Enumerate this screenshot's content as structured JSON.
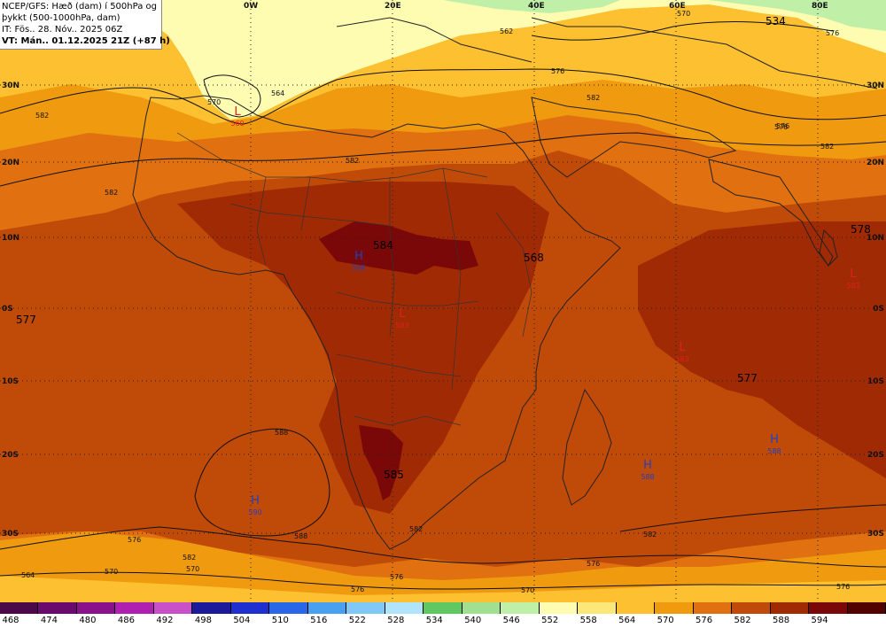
{
  "header": {
    "line1": "NCEP/GFS: Hæð (dam) í 500hPa og",
    "line2": "þykkt (500-1000hPa, dam)",
    "line3": "IT: Fös.. 28. Nóv.. 2025 06Z",
    "line4": "VT: Mán.. 01.12.2025 21Z (+87 h)"
  },
  "lon_labels": [
    "0W",
    "20E",
    "40E",
    "60E",
    "80E"
  ],
  "lat_labels": [
    "30N",
    "20N",
    "10N",
    "0S",
    "10S",
    "20S",
    "30S"
  ],
  "pressure_centers": [
    {
      "type": "L",
      "value": "560",
      "color": "#e02020"
    },
    {
      "type": "H",
      "value": "588",
      "color": "#2040c0"
    },
    {
      "type": "L",
      "value": "583",
      "color": "#e02020"
    },
    {
      "type": "L",
      "value": "583",
      "color": "#e02020"
    },
    {
      "type": "L",
      "value": "583",
      "color": "#e02020"
    },
    {
      "type": "H",
      "value": "588",
      "color": "#2040c0"
    },
    {
      "type": "H",
      "value": "588",
      "color": "#2040c0"
    },
    {
      "type": "H",
      "value": "590",
      "color": "#2040c0"
    }
  ],
  "thickness_labels": [
    "534",
    "584",
    "568",
    "578",
    "577",
    "577",
    "585"
  ],
  "contour_labels": [
    "582",
    "570",
    "564",
    "562",
    "570",
    "576",
    "576",
    "582",
    "582",
    "582",
    "576",
    "582",
    "582",
    "576",
    "576",
    "570",
    "576",
    "564",
    "570",
    "588",
    "588",
    "582",
    "576",
    "582",
    "576",
    "570",
    "576"
  ],
  "colorbar": {
    "values": [
      "468",
      "474",
      "480",
      "486",
      "492",
      "498",
      "504",
      "510",
      "516",
      "522",
      "528",
      "534",
      "540",
      "546",
      "552",
      "558",
      "564",
      "570",
      "576",
      "582",
      "588",
      "594"
    ],
    "colors": [
      "#4a0a4a",
      "#6a0a6e",
      "#8a108c",
      "#b020b0",
      "#c850c8",
      "#1a1a9a",
      "#2030d0",
      "#2868e8",
      "#4aa0f0",
      "#80c8f8",
      "#b0e4fa",
      "#60c860",
      "#a0e090",
      "#c0f0a8",
      "#fdfcb0",
      "#fce878",
      "#fcc030",
      "#f09a10",
      "#e07010",
      "#c04a08",
      "#a02a04",
      "#7a0808",
      "#520000"
    ]
  }
}
